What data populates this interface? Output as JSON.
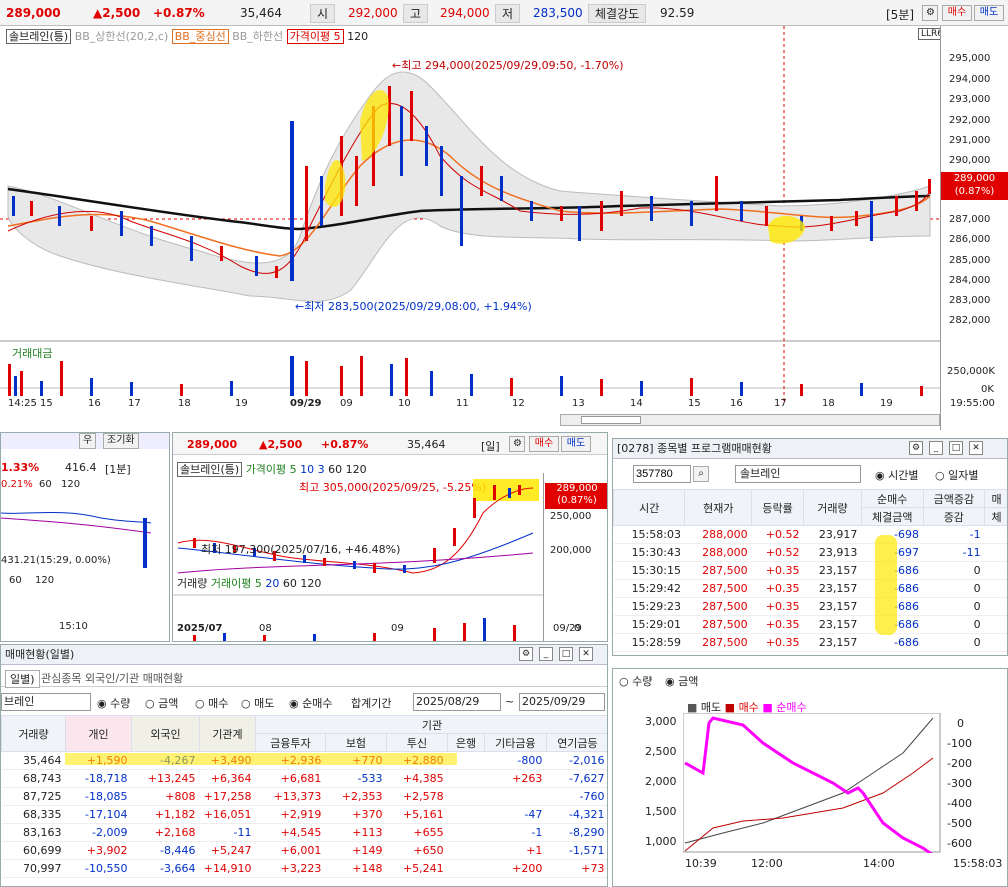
{
  "top": {
    "price": "289,000",
    "change": "▲2,500",
    "pct": "+0.87%",
    "volume": "35,464",
    "open_label": "시",
    "open": "292,000",
    "high_label": "고",
    "high": "294,000",
    "low_label": "저",
    "low": "283,500",
    "strength_label": "체결강도",
    "strength": "92.59",
    "interval": "[5분]",
    "buy": "매수",
    "sell": "매도"
  },
  "main_chart": {
    "legend_name": "솔브레인(틍)",
    "legend_bb_up": "BB_상한선(20,2,c)",
    "legend_bb_mid": "BB_중심선",
    "legend_bb_low": "BB_하한선",
    "legend_ma": "가격이평 5",
    "legend_ma2": "120",
    "annot_high": "←최고 294,000(2025/09/29,09:50, -1.70%)",
    "annot_low": "←최저 283,500(2025/09/29,08:00, +1.94%)",
    "price_tag": "289,000",
    "price_tag_pct": "(0.87%)",
    "y_labels": [
      "295,000",
      "294,000",
      "293,000",
      "292,000",
      "291,000",
      "290,000",
      "289,000",
      "288,000",
      "287,000",
      "286,000",
      "285,000",
      "284,000",
      "283,000",
      "282,000"
    ],
    "vol_label": "거래대금",
    "vol_y": [
      "250,000K",
      "0K"
    ],
    "x_labels": [
      "14:25 15",
      "16",
      "17",
      "18",
      "19",
      "09/29",
      "09",
      "10",
      "11",
      "12",
      "13",
      "14",
      "15",
      "16",
      "17",
      "18",
      "19"
    ],
    "x_end": "19:55:00",
    "llr": "LLR6"
  },
  "left_mini": {
    "pct": "1.33%",
    "val": "416.4",
    "interval": "[1분]",
    "pct2": "0.21%",
    "n120": "120",
    "n60": "60",
    "annot": "431.21(15:29, 0.00%)",
    "n60b": "60",
    "n120b": "120",
    "x": "15:10",
    "tab1": "우",
    "tab2": "조기화"
  },
  "mid_chart": {
    "price": "289,000",
    "change": "▲2,500",
    "pct": "+0.87%",
    "volume": "35,464",
    "interval": "[일]",
    "buy": "매수",
    "sell": "매도",
    "legend_name": "솔브레인(틍)",
    "legend_ma": "가격이평 5",
    "ma10": "10",
    "ma3": "3",
    "ma60": "60",
    "ma120": "120",
    "annot_high": "최고 305,000(2025/09/25, -5.25%)",
    "annot_low": "최저 197,300(2025/07/16, +46.48%)",
    "tag": "289,000",
    "tag_pct": "(0.87%)",
    "y": [
      "250,000",
      "200,000"
    ],
    "vol_legend": "거래량",
    "vol_ma": "거래이평 5",
    "vol_20": "20",
    "vol_60": "60",
    "vol_120": "120",
    "vol_y": "0",
    "x": [
      "2025/07",
      "08",
      "09",
      "09/29"
    ]
  },
  "program": {
    "title": "[0278] 종목별 프로그램매매현황",
    "code": "357780",
    "name": "솔브레인",
    "opt_time": "시간별",
    "opt_day": "일자별",
    "headers": [
      "시간",
      "현재가",
      "등락률",
      "거래량",
      "순매수",
      "금액증감",
      "매"
    ],
    "sub_headers": [
      "체결금액",
      "증감",
      "체"
    ],
    "rows": [
      [
        "15:58:03",
        "288,000",
        "+0.52",
        "23,917",
        "-698",
        "-1"
      ],
      [
        "15:30:43",
        "288,000",
        "+0.52",
        "23,913",
        "-697",
        "-11"
      ],
      [
        "15:30:15",
        "287,500",
        "+0.35",
        "23,157",
        "-686",
        "0"
      ],
      [
        "15:29:42",
        "287,500",
        "+0.35",
        "23,157",
        "-686",
        "0"
      ],
      [
        "15:29:23",
        "287,500",
        "+0.35",
        "23,157",
        "-686",
        "0"
      ],
      [
        "15:29:01",
        "287,500",
        "+0.35",
        "23,157",
        "-686",
        "0"
      ],
      [
        "15:28:59",
        "287,500",
        "+0.35",
        "23,157",
        "-686",
        "0"
      ]
    ]
  },
  "program_chart": {
    "opt_qty": "수량",
    "opt_amt": "금액",
    "legend_sell": "매도",
    "legend_buy": "매수",
    "legend_net": "순매수",
    "y_left": [
      "3,000",
      "2,500",
      "2,000",
      "1,500",
      "1,000"
    ],
    "y_right": [
      "0",
      "-100",
      "-200",
      "-300",
      "-400",
      "-500",
      "-600"
    ],
    "x": [
      "10:39",
      "12:00",
      "14:00"
    ],
    "x_end": "15:58:03"
  },
  "investor": {
    "title": "매매현황(일별)",
    "tab2": "관심종목 외국인/기관 매매현황",
    "name": "브레인",
    "opt_qty": "수량",
    "opt_amt": "금액",
    "opt_buy": "매수",
    "opt_sell": "매도",
    "opt_net": "순매수",
    "period_label": "합계기간",
    "date_from": "2025/08/29",
    "date_to": "2025/09/29",
    "group_label": "기관",
    "headers": [
      "거래량",
      "개인",
      "외국인",
      "기관계",
      "금융투자",
      "보험",
      "투신",
      "은행",
      "기타금융",
      "연기금등"
    ],
    "rows": [
      [
        "35,464",
        "+1,590",
        "-4,267",
        "+3,490",
        "+2,936",
        "+770",
        "+2,880",
        "",
        "-800",
        "-2,016"
      ],
      [
        "68,743",
        "-18,718",
        "+13,245",
        "+6,364",
        "+6,681",
        "-533",
        "+4,385",
        "",
        "+263",
        "-7,627"
      ],
      [
        "87,725",
        "-18,085",
        "+808",
        "+17,258",
        "+13,373",
        "+2,353",
        "+2,578",
        "",
        "",
        "-760"
      ],
      [
        "68,335",
        "-17,104",
        "+1,182",
        "+16,051",
        "+2,919",
        "+370",
        "+5,161",
        "",
        "-47",
        "-4,321"
      ],
      [
        "83,163",
        "-2,009",
        "+2,168",
        "-11",
        "+4,545",
        "+113",
        "+655",
        "",
        "-1",
        "-8,290"
      ],
      [
        "60,699",
        "+3,902",
        "-8,446",
        "+5,247",
        "+6,001",
        "+149",
        "+650",
        "",
        "+1",
        "-1,571"
      ],
      [
        "70,997",
        "-10,550",
        "-3,664",
        "+14,910",
        "+3,223",
        "+148",
        "+5,241",
        "",
        "+200",
        "+73"
      ]
    ]
  },
  "colors": {
    "up": "#e00000",
    "down": "#0030c8",
    "highlight": "#ffe800",
    "net": "#ff00ff"
  }
}
